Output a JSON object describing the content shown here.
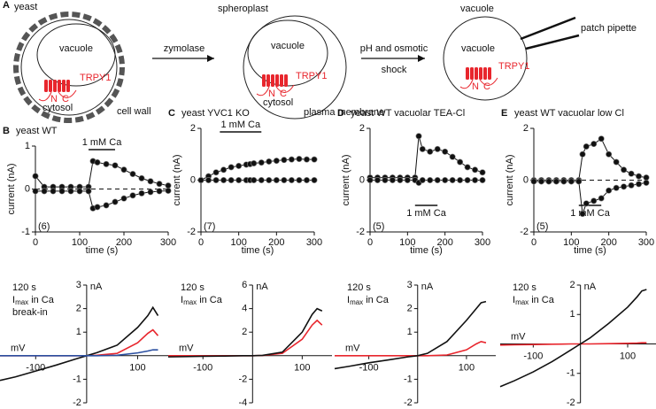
{
  "diagram": {
    "label": "A",
    "cells": [
      {
        "title": "yeast",
        "vacuole": "vacuole",
        "channel": "TRPY1",
        "n": "N",
        "c": "C",
        "cytosol": "cytosol",
        "wall": "cell wall"
      },
      {
        "title": "spheroplast",
        "vacuole": "vacuole",
        "channel": "TRPY1",
        "n": "N",
        "c": "C",
        "cytosol": "cytosol",
        "membrane": "plasma membrane"
      },
      {
        "title": "vacuole",
        "vacuole": "vacuole",
        "channel": "TRPY1",
        "n": "N",
        "c": "C",
        "pipette": "patch pipette"
      }
    ],
    "steps": [
      {
        "lines": [
          "zymolase"
        ]
      },
      {
        "lines": [
          "pH and osmotic",
          "shock"
        ]
      }
    ]
  },
  "chart_data": [
    {
      "type": "line",
      "markers": true,
      "label": "B",
      "title": "yeast WT",
      "ylabel": "current (nA)",
      "xlabel": "time (s)",
      "n": "(6)",
      "zero_line": true,
      "annotation": {
        "text": "1 mM Ca",
        "start": 120,
        "end": 180,
        "position": "top"
      },
      "xlim": [
        0,
        300
      ],
      "xticks": [
        0,
        100,
        200,
        300
      ],
      "ylim": [
        -1,
        1
      ],
      "yticks": [
        -1,
        0,
        1
      ],
      "x": [
        0,
        20,
        40,
        60,
        80,
        100,
        120,
        130,
        140,
        160,
        180,
        200,
        220,
        240,
        260,
        280,
        300
      ],
      "series": [
        {
          "color": "#111111",
          "values": [
            0.3,
            0.05,
            0.05,
            0.05,
            0.05,
            0.05,
            0.05,
            0.65,
            0.62,
            0.58,
            0.55,
            0.45,
            0.35,
            0.25,
            0.18,
            0.12,
            0.08
          ]
        },
        {
          "color": "#111111",
          "values": [
            -0.05,
            -0.05,
            -0.05,
            -0.05,
            -0.05,
            -0.05,
            -0.05,
            -0.45,
            -0.42,
            -0.38,
            -0.3,
            -0.22,
            -0.15,
            -0.1,
            -0.07,
            -0.05,
            -0.04
          ]
        }
      ]
    },
    {
      "type": "line",
      "markers": true,
      "label": "C",
      "title": "yeast YVC1 KO",
      "ylabel": "current (nA)",
      "xlabel": "time (s)",
      "n": "(7)",
      "zero_line": false,
      "annotation": {
        "text": "1 mM Ca",
        "start": 50,
        "end": 160,
        "position": "top"
      },
      "xlim": [
        0,
        300
      ],
      "xticks": [
        0,
        100,
        200,
        300
      ],
      "ylim": [
        -2,
        2
      ],
      "yticks": [
        -2,
        0,
        2
      ],
      "x": [
        0,
        20,
        40,
        60,
        80,
        100,
        120,
        130,
        140,
        160,
        180,
        200,
        220,
        240,
        260,
        280,
        300
      ],
      "series": [
        {
          "color": "#111111",
          "values": [
            0,
            0.15,
            0.3,
            0.4,
            0.5,
            0.55,
            0.6,
            0.62,
            0.65,
            0.68,
            0.72,
            0.75,
            0.78,
            0.8,
            0.82,
            0.8,
            0.8
          ]
        },
        {
          "color": "#111111",
          "values": [
            0,
            0,
            0,
            0,
            0,
            0,
            0,
            0,
            0,
            0,
            0,
            0,
            0,
            0,
            0,
            0,
            0
          ]
        }
      ]
    },
    {
      "type": "line",
      "markers": true,
      "label": "D",
      "title": "yeast WT vacuolar TEA-Cl",
      "ylabel": "current (nA)",
      "xlabel": "time (s)",
      "n": "(5)",
      "zero_line": false,
      "annotation": {
        "text": "1 mM Ca",
        "start": 120,
        "end": 180,
        "position": "bottom"
      },
      "xlim": [
        0,
        300
      ],
      "xticks": [
        0,
        100,
        200,
        300
      ],
      "ylim": [
        -2,
        2
      ],
      "yticks": [
        -2,
        0,
        2
      ],
      "x": [
        0,
        20,
        40,
        60,
        80,
        100,
        120,
        130,
        140,
        160,
        180,
        200,
        220,
        240,
        260,
        280,
        300
      ],
      "series": [
        {
          "color": "#111111",
          "values": [
            0.1,
            0.1,
            0.1,
            0.1,
            0.1,
            0.1,
            0.1,
            1.7,
            1.2,
            1.1,
            1.2,
            1.1,
            0.9,
            0.7,
            0.5,
            0.4,
            0.3
          ]
        },
        {
          "color": "#111111",
          "values": [
            0,
            0,
            0,
            0,
            0,
            0,
            0,
            -0.1,
            0,
            0,
            0,
            0,
            0,
            0,
            0,
            0,
            0
          ]
        }
      ]
    },
    {
      "type": "line",
      "markers": true,
      "label": "E",
      "title": "yeast WT vacuolar low Cl",
      "ylabel": "current (nA)",
      "xlabel": "time (s)",
      "n": "(5)",
      "zero_line": true,
      "annotation": {
        "text": "1 mM Ca",
        "start": 120,
        "end": 180,
        "position": "bottom"
      },
      "xlim": [
        0,
        300
      ],
      "xticks": [
        0,
        100,
        200,
        300
      ],
      "ylim": [
        -2,
        2
      ],
      "yticks": [
        -2,
        0,
        2
      ],
      "x": [
        0,
        20,
        40,
        60,
        80,
        100,
        120,
        130,
        140,
        160,
        180,
        200,
        220,
        240,
        260,
        280,
        300
      ],
      "series": [
        {
          "color": "#111111",
          "values": [
            0,
            0,
            0,
            0,
            0,
            0,
            0,
            1.0,
            1.3,
            1.4,
            1.6,
            1.0,
            0.7,
            0.4,
            0.25,
            0.15,
            0.1
          ]
        },
        {
          "color": "#111111",
          "values": [
            -0.05,
            -0.05,
            -0.05,
            -0.05,
            -0.05,
            -0.05,
            -0.05,
            -1.3,
            -0.9,
            -0.8,
            -0.7,
            -0.4,
            -0.3,
            -0.25,
            -0.2,
            -0.15,
            -0.1
          ]
        }
      ]
    },
    {
      "type": "line",
      "markers": false,
      "axes_at_zero": true,
      "xlabel": "mV",
      "ylabel": "nA",
      "xlim": [
        -170,
        160
      ],
      "xticks": [
        -100,
        100
      ],
      "ylim": [
        -2,
        3
      ],
      "yticks": [
        -2,
        -1,
        1,
        2,
        3
      ],
      "x": [
        -170,
        -140,
        -100,
        -60,
        -20,
        0,
        20,
        60,
        100,
        120,
        130,
        140
      ],
      "series": [
        {
          "name": "120 s",
          "color": "#e8262d",
          "values": [
            0,
            0,
            0,
            0,
            0,
            0,
            0.02,
            0.1,
            0.55,
            0.95,
            1.1,
            0.85
          ]
        },
        {
          "name": "I",
          "name_sub": "max",
          "name_rest": "in Ca",
          "color": "#111111",
          "values": [
            -1.05,
            -0.9,
            -0.65,
            -0.4,
            -0.13,
            0,
            0.13,
            0.45,
            1.2,
            1.7,
            2.05,
            1.7
          ]
        },
        {
          "name": "break-in",
          "color": "#2b4fa0",
          "values": [
            0,
            0,
            0,
            0,
            0,
            0,
            0,
            0.02,
            0.12,
            0.2,
            0.25,
            0.25
          ]
        }
      ]
    },
    {
      "type": "line",
      "markers": false,
      "axes_at_zero": true,
      "xlabel": "mV",
      "ylabel": "nA",
      "xlim": [
        -170,
        160
      ],
      "xticks": [
        -100,
        100
      ],
      "ylim": [
        -4,
        6
      ],
      "yticks": [
        -4,
        -2,
        2,
        4,
        6
      ],
      "x": [
        -170,
        -140,
        -100,
        -60,
        -20,
        0,
        20,
        60,
        100,
        120,
        130,
        140
      ],
      "series": [
        {
          "name": "120 s",
          "color": "#e8262d",
          "values": [
            0,
            0,
            0,
            0,
            0,
            0,
            0.02,
            0.2,
            1.4,
            2.6,
            3.0,
            2.6
          ]
        },
        {
          "name": "I",
          "name_sub": "max",
          "name_rest": "in Ca",
          "color": "#111111",
          "values": [
            -0.1,
            -0.08,
            -0.05,
            -0.03,
            0,
            0,
            0.03,
            0.3,
            2.0,
            3.5,
            4.0,
            3.8
          ]
        }
      ]
    },
    {
      "type": "line",
      "markers": false,
      "axes_at_zero": true,
      "xlabel": "mV",
      "ylabel": "nA",
      "xlim": [
        -170,
        160
      ],
      "xticks": [
        -100,
        100
      ],
      "ylim": [
        -2,
        3
      ],
      "yticks": [
        -2,
        -1,
        1,
        2,
        3
      ],
      "x": [
        -170,
        -140,
        -100,
        -60,
        -20,
        0,
        20,
        60,
        100,
        120,
        130,
        140
      ],
      "series": [
        {
          "name": "120 s",
          "color": "#e8262d",
          "values": [
            0,
            0,
            0,
            0,
            0,
            0,
            0,
            0.03,
            0.25,
            0.5,
            0.6,
            0.55
          ]
        },
        {
          "name": "I",
          "name_sub": "max",
          "name_rest": "in Ca",
          "color": "#111111",
          "values": [
            -0.55,
            -0.45,
            -0.3,
            -0.18,
            -0.05,
            0,
            0.1,
            0.6,
            1.5,
            2.0,
            2.25,
            2.3
          ]
        }
      ]
    },
    {
      "type": "line",
      "markers": false,
      "axes_at_zero": true,
      "xlabel": "mV",
      "ylabel": "nA",
      "xlim": [
        -170,
        160
      ],
      "xticks": [
        -100,
        100
      ],
      "ylim": [
        -2,
        2
      ],
      "yticks": [
        -2,
        -1,
        1,
        2
      ],
      "x": [
        -170,
        -140,
        -100,
        -60,
        -20,
        0,
        20,
        60,
        100,
        120,
        130,
        140
      ],
      "series": [
        {
          "name": "120 s",
          "color": "#e8262d",
          "values": [
            -0.04,
            -0.03,
            -0.02,
            -0.01,
            0,
            0,
            0,
            0.01,
            0.02,
            0.03,
            0.04,
            0.04
          ]
        },
        {
          "name": "I",
          "name_sub": "max",
          "name_rest": "in Ca",
          "color": "#111111",
          "values": [
            -1.45,
            -1.25,
            -0.95,
            -0.6,
            -0.2,
            0,
            0.2,
            0.7,
            1.25,
            1.6,
            1.8,
            1.85
          ]
        }
      ]
    }
  ]
}
